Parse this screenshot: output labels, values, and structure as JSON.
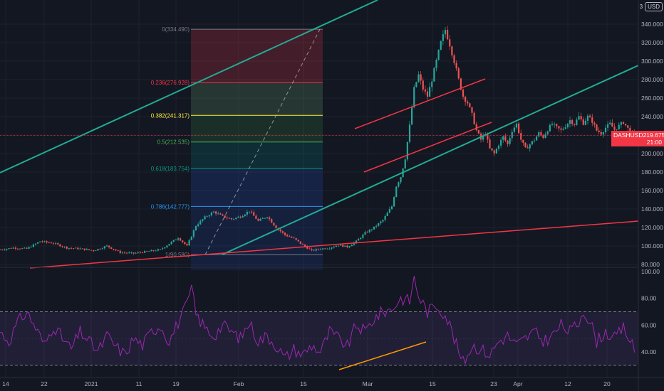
{
  "symbol": "DASHUSD",
  "last_price": "219.675",
  "countdown": "21:00",
  "currency": "USD",
  "scale_marker": "3",
  "colors": {
    "background": "#131722",
    "grid": "#1e222d",
    "up": "#26a69a",
    "down": "#ef5350",
    "teal_channel": "#22ab94",
    "red_trend": "#f23645",
    "rsi_line": "#9c27b0",
    "rsi_band": "#7e57c2",
    "rsi_divergence": "#ff9800",
    "price_line": "#f23645"
  },
  "chart_data": [
    {
      "type": "candlestick",
      "title": "DASHUSD",
      "y_ticks": [
        "340.000",
        "320.000",
        "300.000",
        "280.000",
        "260.000",
        "240.000",
        "220.000",
        "200.000",
        "180.000",
        "160.000",
        "140.000",
        "120.000",
        "100.000",
        "80.000"
      ],
      "ylim": [
        74,
        348
      ],
      "x_ticks": [
        "14",
        "22",
        "2021",
        "11",
        "19",
        "Feb",
        "15",
        "Mar",
        "15",
        "23",
        "Apr",
        "12",
        "20"
      ],
      "price_path": [
        [
          0,
          96
        ],
        [
          3,
          98
        ],
        [
          6,
          97
        ],
        [
          9,
          105
        ],
        [
          12,
          103
        ],
        [
          15,
          98
        ],
        [
          18,
          97
        ],
        [
          21,
          95
        ],
        [
          24,
          100
        ],
        [
          27,
          93
        ],
        [
          30,
          92
        ],
        [
          33,
          94
        ],
        [
          36,
          96
        ],
        [
          40,
          109
        ],
        [
          42,
          100
        ],
        [
          44,
          122
        ],
        [
          46,
          131
        ],
        [
          48,
          137
        ],
        [
          50,
          132
        ],
        [
          52,
          129
        ],
        [
          54,
          132
        ],
        [
          56,
          138
        ],
        [
          58,
          127
        ],
        [
          60,
          132
        ],
        [
          62,
          120
        ],
        [
          64,
          112
        ],
        [
          66,
          108
        ],
        [
          68,
          101
        ],
        [
          70,
          95
        ],
        [
          72,
          97
        ],
        [
          74,
          98
        ],
        [
          76,
          101
        ],
        [
          78,
          99
        ],
        [
          80,
          105
        ],
        [
          82,
          114
        ],
        [
          84,
          120
        ],
        [
          86,
          128
        ],
        [
          88,
          143
        ],
        [
          89,
          165
        ],
        [
          90,
          175
        ],
        [
          91,
          195
        ],
        [
          92,
          230
        ],
        [
          93,
          270
        ],
        [
          94,
          285
        ],
        [
          95,
          270
        ],
        [
          96,
          262
        ],
        [
          97,
          280
        ],
        [
          98,
          300
        ],
        [
          99,
          320
        ],
        [
          100,
          334
        ],
        [
          101,
          318
        ],
        [
          102,
          300
        ],
        [
          103,
          280
        ],
        [
          104,
          262
        ],
        [
          105,
          255
        ],
        [
          106,
          242
        ],
        [
          107,
          225
        ],
        [
          108,
          215
        ],
        [
          109,
          222
        ],
        [
          110,
          205
        ],
        [
          111,
          200
        ],
        [
          112,
          210
        ],
        [
          113,
          218
        ],
        [
          114,
          210
        ],
        [
          115,
          225
        ],
        [
          116,
          232
        ],
        [
          117,
          215
        ],
        [
          118,
          205
        ],
        [
          119,
          210
        ],
        [
          120,
          215
        ],
        [
          121,
          222
        ],
        [
          122,
          218
        ],
        [
          123,
          226
        ],
        [
          124,
          232
        ],
        [
          125,
          228
        ],
        [
          126,
          225
        ],
        [
          127,
          230
        ],
        [
          128,
          236
        ],
        [
          129,
          232
        ],
        [
          130,
          240
        ],
        [
          131,
          233
        ],
        [
          132,
          240
        ],
        [
          133,
          235
        ],
        [
          134,
          225
        ],
        [
          135,
          222
        ],
        [
          136,
          228
        ],
        [
          137,
          232
        ],
        [
          138,
          226
        ],
        [
          139,
          230
        ],
        [
          140,
          234
        ],
        [
          141,
          227
        ],
        [
          142,
          222
        ],
        [
          142.6,
          219.675
        ]
      ],
      "fibonacci": [
        {
          "ratio": "0",
          "price": "334.490",
          "color": "#787b86"
        },
        {
          "ratio": "0.236",
          "price": "276.928",
          "color": "#f23645"
        },
        {
          "ratio": "0.382",
          "price": "241.317",
          "color": "#ffeb3b"
        },
        {
          "ratio": "0.5",
          "price": "212.535",
          "color": "#4caf50"
        },
        {
          "ratio": "0.618",
          "price": "183.754",
          "color": "#089981"
        },
        {
          "ratio": "0.786",
          "price": "142.777",
          "color": "#2196f3"
        },
        {
          "ratio": "1",
          "price": "90.580",
          "color": "#787b86"
        }
      ],
      "annotations": [
        "ascending channel (teal)",
        "rising channel (red)",
        "long-term trendline (red)"
      ]
    },
    {
      "type": "line",
      "title": "",
      "y_ticks": [
        "100.00",
        "80.00",
        "60.00",
        "40.00"
      ],
      "ylim": [
        22,
        101
      ],
      "bands": {
        "upper": 70,
        "lower": 30
      },
      "rsi_path": [
        [
          0,
          55
        ],
        [
          2,
          48
        ],
        [
          4,
          62
        ],
        [
          6,
          70
        ],
        [
          8,
          58
        ],
        [
          10,
          45
        ],
        [
          12,
          60
        ],
        [
          14,
          50
        ],
        [
          16,
          42
        ],
        [
          18,
          55
        ],
        [
          20,
          48
        ],
        [
          22,
          40
        ],
        [
          24,
          52
        ],
        [
          26,
          44
        ],
        [
          28,
          38
        ],
        [
          30,
          50
        ],
        [
          32,
          45
        ],
        [
          34,
          55
        ],
        [
          36,
          60
        ],
        [
          38,
          48
        ],
        [
          40,
          62
        ],
        [
          42,
          75
        ],
        [
          43,
          88
        ],
        [
          44,
          68
        ],
        [
          46,
          58
        ],
        [
          48,
          52
        ],
        [
          50,
          60
        ],
        [
          52,
          55
        ],
        [
          54,
          50
        ],
        [
          56,
          62
        ],
        [
          58,
          48
        ],
        [
          60,
          52
        ],
        [
          62,
          45
        ],
        [
          64,
          35
        ],
        [
          66,
          42
        ],
        [
          68,
          38
        ],
        [
          70,
          45
        ],
        [
          72,
          40
        ],
        [
          74,
          55
        ],
        [
          76,
          50
        ],
        [
          78,
          44
        ],
        [
          80,
          60
        ],
        [
          82,
          55
        ],
        [
          84,
          65
        ],
        [
          86,
          70
        ],
        [
          88,
          72
        ],
        [
          90,
          80
        ],
        [
          92,
          78
        ],
        [
          93,
          95
        ],
        [
          94,
          82
        ],
        [
          96,
          70
        ],
        [
          98,
          75
        ],
        [
          100,
          68
        ],
        [
          101,
          60
        ],
        [
          102,
          50
        ],
        [
          103,
          40
        ],
        [
          104,
          32
        ],
        [
          105,
          38
        ],
        [
          106,
          45
        ],
        [
          108,
          42
        ],
        [
          110,
          38
        ],
        [
          112,
          48
        ],
        [
          114,
          52
        ],
        [
          116,
          45
        ],
        [
          118,
          50
        ],
        [
          120,
          55
        ],
        [
          122,
          48
        ],
        [
          124,
          52
        ],
        [
          126,
          60
        ],
        [
          128,
          55
        ],
        [
          130,
          62
        ],
        [
          131,
          72
        ],
        [
          132,
          65
        ],
        [
          133,
          58
        ],
        [
          134,
          48
        ],
        [
          136,
          55
        ],
        [
          138,
          50
        ],
        [
          140,
          58
        ],
        [
          141,
          52
        ],
        [
          142.6,
          40
        ]
      ]
    }
  ]
}
